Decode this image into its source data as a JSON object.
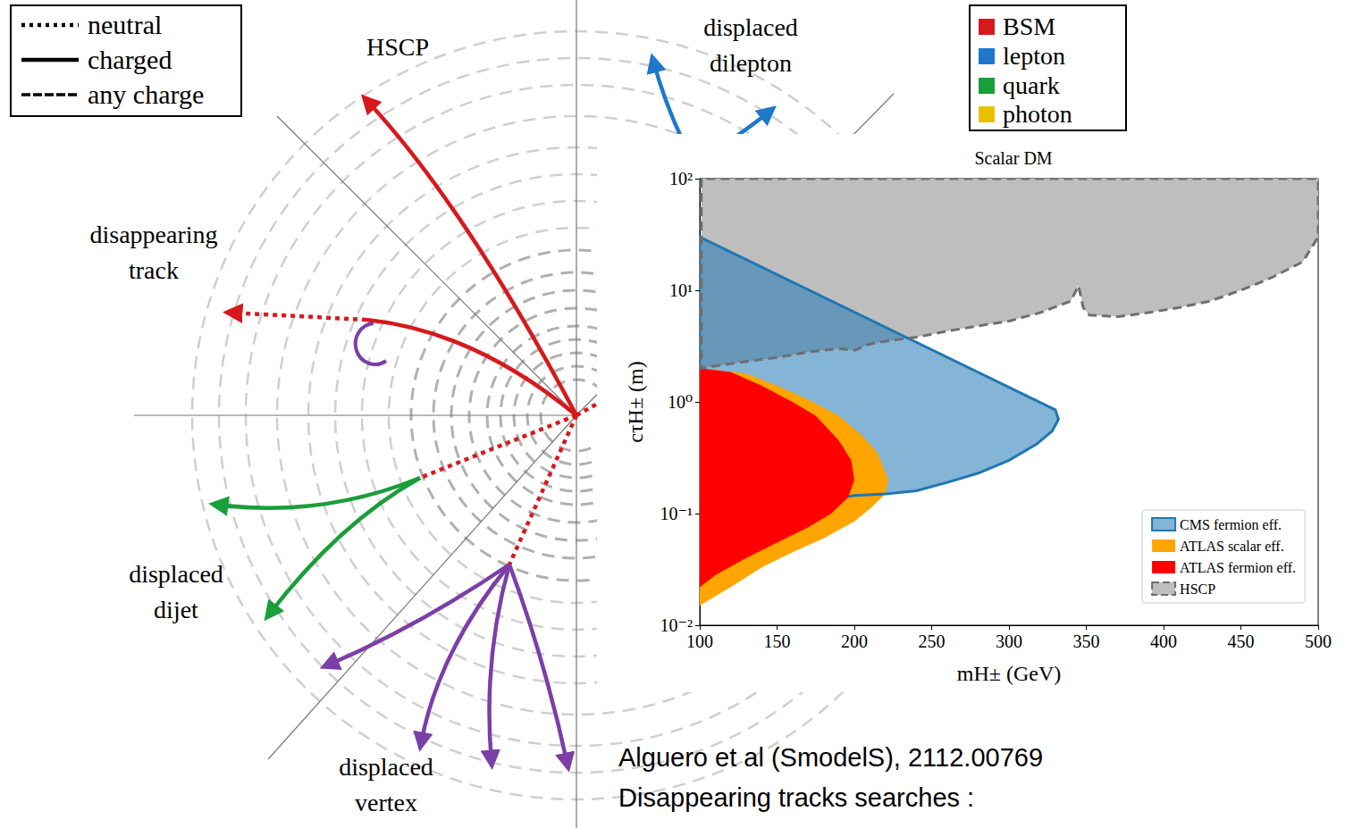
{
  "diagram": {
    "line_legend": [
      {
        "label": "neutral",
        "line_style": "dotted"
      },
      {
        "label": "charged",
        "line_style": "solid"
      },
      {
        "label": "any charge",
        "line_style": "dashed"
      }
    ],
    "color_legend": [
      {
        "label": "BSM",
        "color": "#d7191c"
      },
      {
        "label": "lepton",
        "color": "#1f78c8"
      },
      {
        "label": "quark",
        "color": "#1a9e3a"
      },
      {
        "label": "photon",
        "color": "#e8c000"
      }
    ],
    "signatures": [
      "HSCP",
      "displaced dilepton",
      "disappearing track",
      "displaced dijet",
      "displaced vertex"
    ]
  },
  "chart_data": {
    "type": "area",
    "title": "Scalar DM",
    "x_label": "mH± (GeV)",
    "y_label": "cτH± (m)",
    "xlim": [
      100,
      500
    ],
    "xticks": [
      100,
      150,
      200,
      250,
      300,
      350,
      400,
      450,
      500
    ],
    "ylim": [
      0.01,
      100
    ],
    "yticks": [
      {
        "value": 0.01,
        "label": "10⁻²"
      },
      {
        "value": 0.1,
        "label": "10⁻¹"
      },
      {
        "value": 1,
        "label": "10⁰"
      },
      {
        "value": 10,
        "label": "10¹"
      },
      {
        "value": 100,
        "label": "10²"
      }
    ],
    "log": "y",
    "grid": false,
    "legend": "lower right",
    "series": [
      {
        "name": "CMS fermion eff.",
        "color": "#1f77b4",
        "line_style": "solid",
        "x": [
          100,
          330,
          332,
          328,
          318,
          300,
          280,
          260,
          240,
          220,
          200,
          180,
          160,
          140,
          120,
          105,
          100
        ],
        "values": [
          30,
          0.85,
          0.7,
          0.55,
          0.42,
          0.3,
          0.23,
          0.19,
          0.16,
          0.15,
          0.145,
          0.13,
          0.12,
          0.11,
          0.09,
          0.065,
          0.06
        ]
      },
      {
        "name": "ATLAS scalar eff.",
        "color": "#ffa500",
        "x": [
          100,
          130,
          150,
          170,
          190,
          205,
          215,
          222,
          220,
          210,
          200,
          180,
          160,
          140,
          120,
          100
        ],
        "values": [
          2.0,
          1.8,
          1.4,
          1.05,
          0.75,
          0.5,
          0.35,
          0.2,
          0.15,
          0.11,
          0.085,
          0.06,
          0.045,
          0.033,
          0.022,
          0.015
        ]
      },
      {
        "name": "ATLAS fermion eff.",
        "color": "#ff0000",
        "x": [
          100,
          120,
          140,
          160,
          175,
          190,
          198,
          200,
          196,
          185,
          170,
          150,
          130,
          110,
          100
        ],
        "values": [
          2.0,
          1.85,
          1.4,
          1.0,
          0.75,
          0.45,
          0.3,
          0.2,
          0.14,
          0.1,
          0.075,
          0.055,
          0.04,
          0.028,
          0.022
        ]
      },
      {
        "name": "HSCP",
        "color": "#bebebe",
        "line_style": "dashed",
        "x": [
          101,
          101,
          110,
          130,
          150,
          170,
          190,
          200,
          210,
          220,
          240,
          260,
          280,
          300,
          320,
          340,
          345,
          348,
          352,
          370,
          390,
          410,
          430,
          450,
          470,
          490,
          500,
          500
        ],
        "values": [
          100,
          2.0,
          2.1,
          2.3,
          2.5,
          2.8,
          3.0,
          2.9,
          3.3,
          3.5,
          3.8,
          4.3,
          4.8,
          5.3,
          6.3,
          8,
          11,
          7,
          6,
          5.8,
          6.3,
          7,
          8,
          10,
          13,
          18,
          30,
          100
        ]
      }
    ]
  },
  "caption": [
    "Alguero et al (SmodelS), 2112.00769",
    "Disappearing tracks searches :"
  ]
}
